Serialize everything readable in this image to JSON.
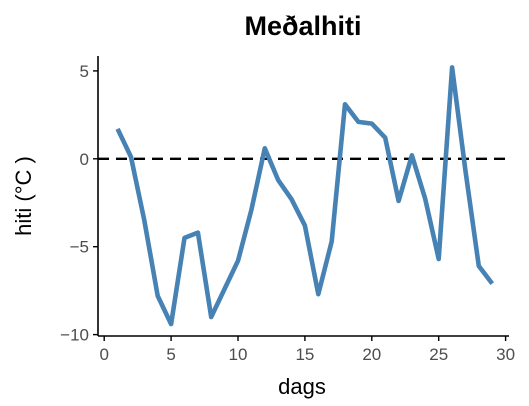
{
  "chart_data": {
    "type": "line",
    "title": "Meðalhiti",
    "xlabel": "dags",
    "ylabel": "hiti (°C )",
    "xlim": [
      0,
      30
    ],
    "ylim": [
      -10,
      5
    ],
    "xticks": [
      0,
      5,
      10,
      15,
      20,
      25,
      30
    ],
    "yticks": [
      -10,
      -5,
      0,
      5
    ],
    "grid": false,
    "reference_line": {
      "y": 0,
      "style": "dashed",
      "color": "#000000"
    },
    "series": [
      {
        "color": "#4682b4",
        "x": [
          1,
          2,
          3,
          4,
          5,
          6,
          7,
          8,
          9,
          10,
          11,
          12,
          13,
          14,
          15,
          16,
          17,
          18,
          19,
          20,
          21,
          22,
          23,
          24,
          25,
          26,
          27,
          28,
          29
        ],
        "y": [
          1.7,
          0.1,
          -3.5,
          -7.8,
          -9.4,
          -4.5,
          -4.2,
          -9.0,
          -7.4,
          -5.8,
          -2.9,
          0.6,
          -1.2,
          -2.3,
          -3.8,
          -7.7,
          -4.7,
          3.1,
          2.1,
          2.0,
          1.2,
          -2.4,
          0.2,
          -2.3,
          -5.7,
          5.2,
          -0.7,
          -6.1,
          -7.1
        ]
      }
    ]
  }
}
